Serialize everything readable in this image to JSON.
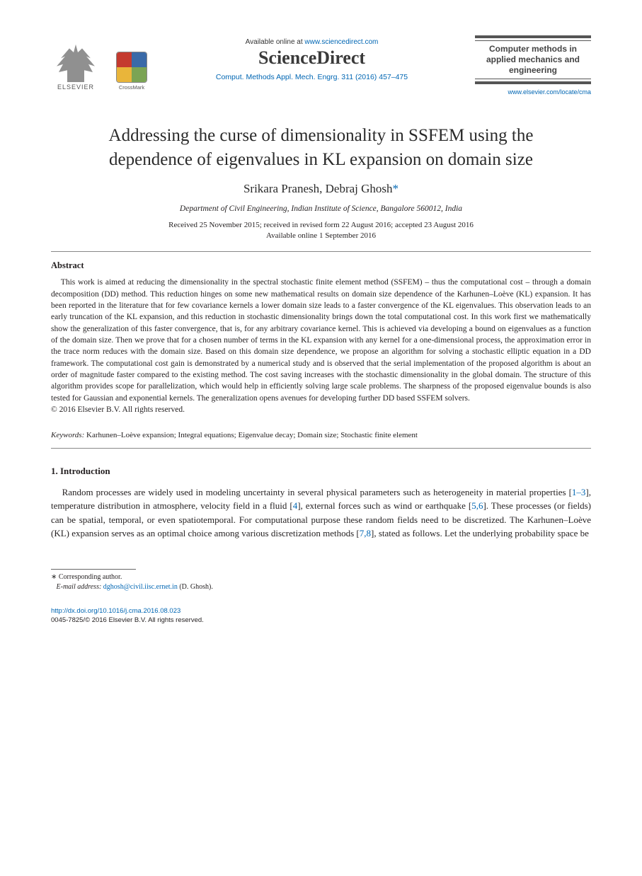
{
  "header": {
    "elsevier_label": "ELSEVIER",
    "crossmark_label": "CrossMark",
    "available_prefix": "Available online at ",
    "available_url": "www.sciencedirect.com",
    "sciencedirect_logo_text": "ScienceDirect",
    "citation": "Comput. Methods Appl. Mech. Engrg. 311 (2016) 457–475",
    "journal_box_lines": "Computer methods in applied mechanics and engineering",
    "journal_link": "www.elsevier.com/locate/cma"
  },
  "article": {
    "title": "Addressing the curse of dimensionality in SSFEM using the dependence of eigenvalues in KL expansion on domain size",
    "authors_prefix": "Srikara Pranesh, Debraj Ghosh",
    "corresponding_mark": "*",
    "affiliation": "Department of Civil Engineering, Indian Institute of Science, Bangalore 560012, India",
    "dates_line1": "Received 25 November 2015; received in revised form 22 August 2016; accepted 23 August 2016",
    "dates_line2": "Available online 1 September 2016"
  },
  "abstract": {
    "heading": "Abstract",
    "text": "This work is aimed at reducing the dimensionality in the spectral stochastic finite element method (SSFEM) – thus the computational cost – through a domain decomposition (DD) method. This reduction hinges on some new mathematical results on domain size dependence of the Karhunen–Loève (KL) expansion. It has been reported in the literature that for few covariance kernels a lower domain size leads to a faster convergence of the KL eigenvalues. This observation leads to an early truncation of the KL expansion, and this reduction in stochastic dimensionality brings down the total computational cost. In this work first we mathematically show the generalization of this faster convergence, that is, for any arbitrary covariance kernel. This is achieved via developing a bound on eigenvalues as a function of the domain size. Then we prove that for a chosen number of terms in the KL expansion with any kernel for a one-dimensional process, the approximation error in the trace norm reduces with the domain size. Based on this domain size dependence, we propose an algorithm for solving a stochastic elliptic equation in a DD framework. The computational cost gain is demonstrated by a numerical study and is observed that the serial implementation of the proposed algorithm is about an order of magnitude faster compared to the existing method. The cost saving increases with the stochastic dimensionality in the global domain. The structure of this algorithm provides scope for parallelization, which would help in efficiently solving large scale problems. The sharpness of the proposed eigenvalue bounds is also tested for Gaussian and exponential kernels. The generalization opens avenues for developing further DD based SSFEM solvers.",
    "copyright": "© 2016 Elsevier B.V. All rights reserved."
  },
  "keywords": {
    "label": "Keywords:",
    "list": "Karhunen–Loève expansion; Integral equations; Eigenvalue decay; Domain size; Stochastic finite element"
  },
  "intro": {
    "heading": "1.  Introduction",
    "para": "Random processes are widely used in modeling uncertainty in several physical parameters such as heterogeneity in material properties [1–3], temperature distribution in atmosphere, velocity field in a fluid [4], external forces such as wind or earthquake [5,6]. These processes (or fields) can be spatial, temporal, or even spatiotemporal. For computational purpose these random fields need to be discretized. The Karhunen–Loève (KL) expansion serves as an optimal choice among various discretization methods [7,8], stated as follows. Let the underlying probability space be",
    "cites": {
      "c1": "1–3",
      "c2": "4",
      "c3": "5,6",
      "c4": "7,8"
    }
  },
  "footnote": {
    "corresponding": "Corresponding author.",
    "email_label": "E-mail address:",
    "email": "dghosh@civil.iisc.ernet.in",
    "email_author": "(D. Ghosh)."
  },
  "footer": {
    "doi": "http://dx.doi.org/10.1016/j.cma.2016.08.023",
    "issn_line": "0045-7825/© 2016 Elsevier B.V. All rights reserved."
  },
  "colors": {
    "link": "#0066b3",
    "text": "#231f20",
    "rule": "#888888"
  }
}
